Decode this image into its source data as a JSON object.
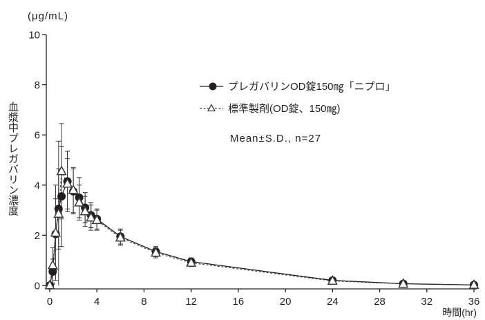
{
  "chart_data": {
    "type": "line",
    "unit_label": "(μg/mL)",
    "ylabel": "血漿中プレガバリン濃度",
    "xlabel": "時間(hr)",
    "xlim": [
      0,
      36
    ],
    "ylim": [
      0,
      10
    ],
    "xticks": [
      0,
      4,
      8,
      12,
      16,
      20,
      24,
      28,
      32,
      36
    ],
    "yticks": [
      0,
      2,
      4,
      6,
      8,
      10
    ],
    "grid": false,
    "legend_position": "top-right",
    "annotation": "Mean±S.D., n=27",
    "x": [
      0,
      0.25,
      0.5,
      0.75,
      1,
      1.5,
      2,
      2.5,
      3,
      3.5,
      4,
      6,
      9,
      12,
      24,
      30,
      36
    ],
    "series": [
      {
        "name": "プレガバリンOD錠150㎎「ニプロ」",
        "marker": "filled-circle",
        "line_style": "solid",
        "color": "#231f20",
        "values": [
          0,
          0.55,
          2.05,
          3.05,
          3.55,
          4.15,
          3.75,
          3.5,
          3.1,
          2.8,
          2.65,
          1.95,
          1.35,
          0.95,
          0.2,
          0.07,
          0.02
        ],
        "sd": [
          0,
          0.5,
          1.4,
          1.6,
          2.0,
          1.2,
          0.9,
          0.8,
          0.6,
          0.5,
          0.4,
          0.3,
          0.2,
          0.15,
          0.08,
          0.04,
          0.02
        ]
      },
      {
        "name": "標準製剤(OD錠、150㎎)",
        "marker": "open-triangle",
        "line_style": "dashed",
        "color": "#3c3c3c",
        "values": [
          0,
          0.8,
          2.1,
          2.85,
          4.55,
          4.05,
          3.8,
          3.3,
          2.95,
          2.7,
          2.6,
          1.9,
          1.3,
          0.9,
          0.18,
          0.06,
          0.02
        ],
        "sd": [
          0,
          0.7,
          1.9,
          2.9,
          1.9,
          1.0,
          0.9,
          0.7,
          0.6,
          0.5,
          0.4,
          0.3,
          0.2,
          0.15,
          0.08,
          0.04,
          0.02
        ]
      }
    ]
  }
}
